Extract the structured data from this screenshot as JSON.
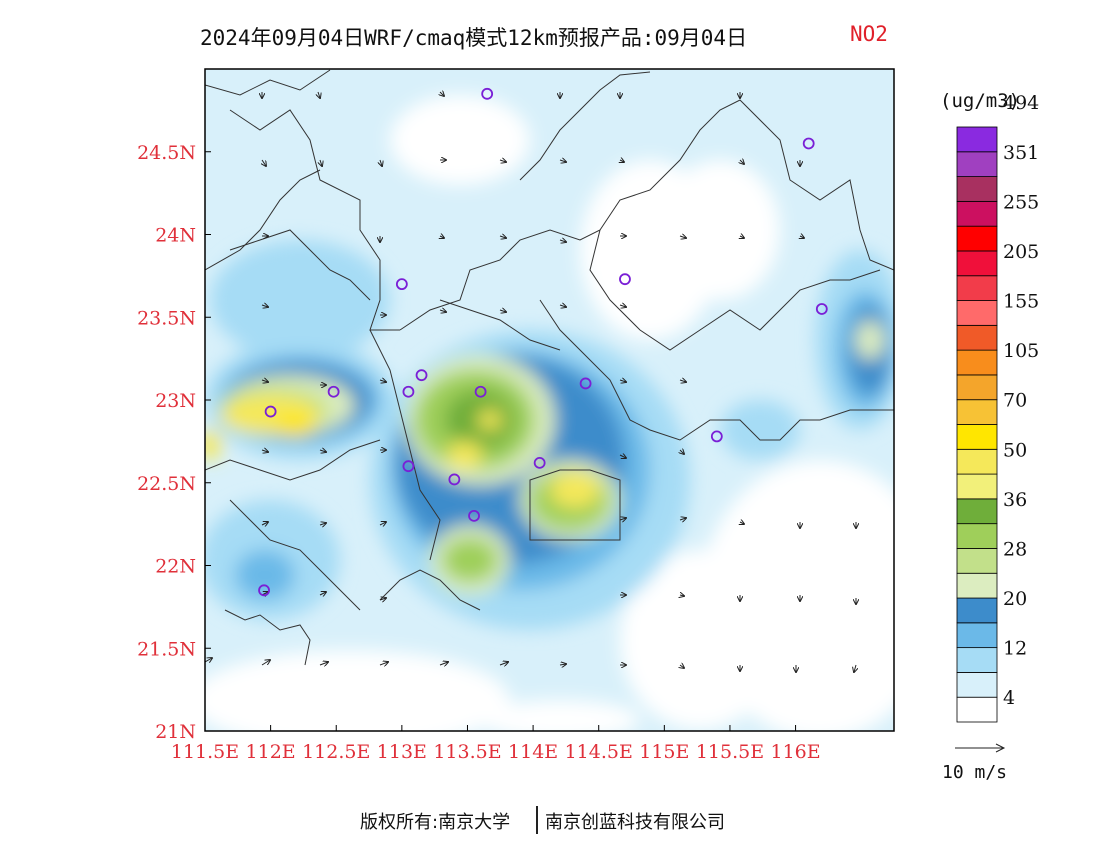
{
  "title": {
    "main": "2024年09月04日WRF/cmaq模式12km预报产品:09月04日",
    "variable": "NO2"
  },
  "units": "(ug/m3)",
  "axes": {
    "x_ticks": [
      "111.5E",
      "112E",
      "112.5E",
      "113E",
      "113.5E",
      "114E",
      "114.5E",
      "115E",
      "115.5E",
      "116E"
    ],
    "x_values": [
      111.5,
      112,
      112.5,
      113,
      113.5,
      114,
      114.5,
      115,
      115.5,
      116
    ],
    "y_ticks": [
      "21N",
      "21.5N",
      "22N",
      "22.5N",
      "23N",
      "23.5N",
      "24N",
      "24.5N"
    ],
    "y_values": [
      21,
      21.5,
      22,
      22.5,
      23,
      23.5,
      24,
      24.5
    ],
    "lon_range": [
      111.5,
      116.75
    ],
    "lat_range": [
      21,
      25
    ],
    "tick_color": "#e0303a"
  },
  "colorbar": {
    "colors": [
      "#ffffff",
      "#d8f0fa",
      "#a6dcf5",
      "#6bb9e8",
      "#3d8ccb",
      "#dcedc0",
      "#c2e08a",
      "#9fcf5a",
      "#6fae3a",
      "#f2f07a",
      "#f5e85a",
      "#ffe600",
      "#f7c235",
      "#f4a52b",
      "#f88d1c",
      "#f05a28",
      "#ff6a6a",
      "#f23c4a",
      "#f0103a",
      "#ff0000",
      "#cc1060",
      "#a83060",
      "#a040c0",
      "#8a2ae0"
    ],
    "labels": [
      "4",
      "12",
      "20",
      "28",
      "36",
      "50",
      "70",
      "105",
      "155",
      "205",
      "255",
      "351",
      "494"
    ]
  },
  "stations": [
    {
      "lon": 113.65,
      "lat": 24.85
    },
    {
      "lon": 116.1,
      "lat": 24.55
    },
    {
      "lon": 113.0,
      "lat": 23.7
    },
    {
      "lon": 114.7,
      "lat": 23.73
    },
    {
      "lon": 116.2,
      "lat": 23.55
    },
    {
      "lon": 112.48,
      "lat": 23.05
    },
    {
      "lon": 112.0,
      "lat": 22.93
    },
    {
      "lon": 113.05,
      "lat": 23.05
    },
    {
      "lon": 113.15,
      "lat": 23.15
    },
    {
      "lon": 113.6,
      "lat": 23.05
    },
    {
      "lon": 114.4,
      "lat": 23.1
    },
    {
      "lon": 115.4,
      "lat": 22.78
    },
    {
      "lon": 113.05,
      "lat": 22.6
    },
    {
      "lon": 113.4,
      "lat": 22.52
    },
    {
      "lon": 114.05,
      "lat": 22.62
    },
    {
      "lon": 113.55,
      "lat": 22.3
    },
    {
      "lon": 111.95,
      "lat": 21.85
    }
  ],
  "wind": {
    "legend_label": "10 m/s"
  },
  "footer": {
    "left": "版权所有:南京大学",
    "right": "南京创蓝科技有限公司"
  }
}
